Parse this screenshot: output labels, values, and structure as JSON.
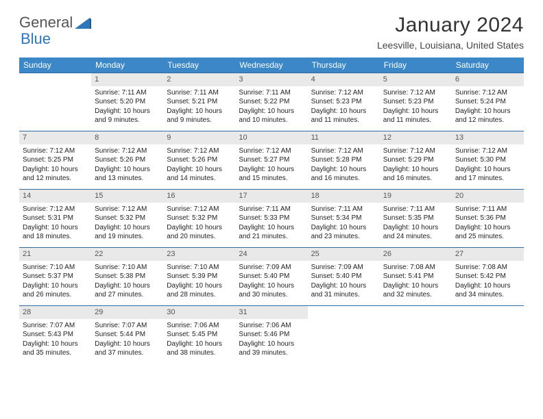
{
  "brand": {
    "part1": "General",
    "part2": "Blue"
  },
  "title": "January 2024",
  "location": "Leesville, Louisiana, United States",
  "colors": {
    "header_bg": "#3b87c8",
    "header_text": "#ffffff",
    "daynum_bg": "#e9e9e9",
    "week_border": "#2c6ca3",
    "logo_gray": "#555555",
    "logo_blue": "#2c77b8"
  },
  "daynames": [
    "Sunday",
    "Monday",
    "Tuesday",
    "Wednesday",
    "Thursday",
    "Friday",
    "Saturday"
  ],
  "weeks": [
    [
      null,
      {
        "n": "1",
        "sunrise": "7:11 AM",
        "sunset": "5:20 PM",
        "daylight": "10 hours and 9 minutes."
      },
      {
        "n": "2",
        "sunrise": "7:11 AM",
        "sunset": "5:21 PM",
        "daylight": "10 hours and 9 minutes."
      },
      {
        "n": "3",
        "sunrise": "7:11 AM",
        "sunset": "5:22 PM",
        "daylight": "10 hours and 10 minutes."
      },
      {
        "n": "4",
        "sunrise": "7:12 AM",
        "sunset": "5:23 PM",
        "daylight": "10 hours and 11 minutes."
      },
      {
        "n": "5",
        "sunrise": "7:12 AM",
        "sunset": "5:23 PM",
        "daylight": "10 hours and 11 minutes."
      },
      {
        "n": "6",
        "sunrise": "7:12 AM",
        "sunset": "5:24 PM",
        "daylight": "10 hours and 12 minutes."
      }
    ],
    [
      {
        "n": "7",
        "sunrise": "7:12 AM",
        "sunset": "5:25 PM",
        "daylight": "10 hours and 12 minutes."
      },
      {
        "n": "8",
        "sunrise": "7:12 AM",
        "sunset": "5:26 PM",
        "daylight": "10 hours and 13 minutes."
      },
      {
        "n": "9",
        "sunrise": "7:12 AM",
        "sunset": "5:26 PM",
        "daylight": "10 hours and 14 minutes."
      },
      {
        "n": "10",
        "sunrise": "7:12 AM",
        "sunset": "5:27 PM",
        "daylight": "10 hours and 15 minutes."
      },
      {
        "n": "11",
        "sunrise": "7:12 AM",
        "sunset": "5:28 PM",
        "daylight": "10 hours and 16 minutes."
      },
      {
        "n": "12",
        "sunrise": "7:12 AM",
        "sunset": "5:29 PM",
        "daylight": "10 hours and 16 minutes."
      },
      {
        "n": "13",
        "sunrise": "7:12 AM",
        "sunset": "5:30 PM",
        "daylight": "10 hours and 17 minutes."
      }
    ],
    [
      {
        "n": "14",
        "sunrise": "7:12 AM",
        "sunset": "5:31 PM",
        "daylight": "10 hours and 18 minutes."
      },
      {
        "n": "15",
        "sunrise": "7:12 AM",
        "sunset": "5:32 PM",
        "daylight": "10 hours and 19 minutes."
      },
      {
        "n": "16",
        "sunrise": "7:12 AM",
        "sunset": "5:32 PM",
        "daylight": "10 hours and 20 minutes."
      },
      {
        "n": "17",
        "sunrise": "7:11 AM",
        "sunset": "5:33 PM",
        "daylight": "10 hours and 21 minutes."
      },
      {
        "n": "18",
        "sunrise": "7:11 AM",
        "sunset": "5:34 PM",
        "daylight": "10 hours and 23 minutes."
      },
      {
        "n": "19",
        "sunrise": "7:11 AM",
        "sunset": "5:35 PM",
        "daylight": "10 hours and 24 minutes."
      },
      {
        "n": "20",
        "sunrise": "7:11 AM",
        "sunset": "5:36 PM",
        "daylight": "10 hours and 25 minutes."
      }
    ],
    [
      {
        "n": "21",
        "sunrise": "7:10 AM",
        "sunset": "5:37 PM",
        "daylight": "10 hours and 26 minutes."
      },
      {
        "n": "22",
        "sunrise": "7:10 AM",
        "sunset": "5:38 PM",
        "daylight": "10 hours and 27 minutes."
      },
      {
        "n": "23",
        "sunrise": "7:10 AM",
        "sunset": "5:39 PM",
        "daylight": "10 hours and 28 minutes."
      },
      {
        "n": "24",
        "sunrise": "7:09 AM",
        "sunset": "5:40 PM",
        "daylight": "10 hours and 30 minutes."
      },
      {
        "n": "25",
        "sunrise": "7:09 AM",
        "sunset": "5:40 PM",
        "daylight": "10 hours and 31 minutes."
      },
      {
        "n": "26",
        "sunrise": "7:08 AM",
        "sunset": "5:41 PM",
        "daylight": "10 hours and 32 minutes."
      },
      {
        "n": "27",
        "sunrise": "7:08 AM",
        "sunset": "5:42 PM",
        "daylight": "10 hours and 34 minutes."
      }
    ],
    [
      {
        "n": "28",
        "sunrise": "7:07 AM",
        "sunset": "5:43 PM",
        "daylight": "10 hours and 35 minutes."
      },
      {
        "n": "29",
        "sunrise": "7:07 AM",
        "sunset": "5:44 PM",
        "daylight": "10 hours and 37 minutes."
      },
      {
        "n": "30",
        "sunrise": "7:06 AM",
        "sunset": "5:45 PM",
        "daylight": "10 hours and 38 minutes."
      },
      {
        "n": "31",
        "sunrise": "7:06 AM",
        "sunset": "5:46 PM",
        "daylight": "10 hours and 39 minutes."
      },
      null,
      null,
      null
    ]
  ],
  "labels": {
    "sunrise": "Sunrise:",
    "sunset": "Sunset:",
    "daylight": "Daylight:"
  }
}
